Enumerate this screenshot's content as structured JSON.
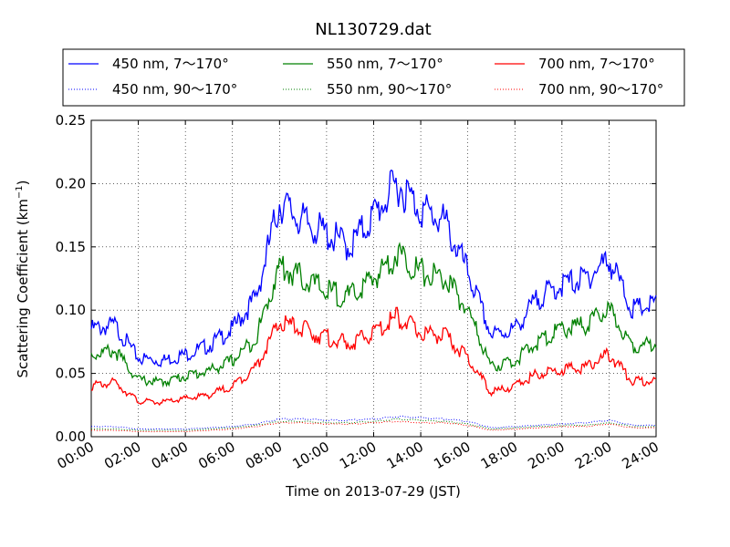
{
  "chart_data": {
    "type": "line",
    "title": "NL130729.dat",
    "xlabel": "Time on 2013-07-29 (JST)",
    "ylabel": "Scattering Coefficient (km",
    "ylabel_sup": "−1",
    "ylabel_end": ")",
    "xlim": [
      "00:00",
      "24:00"
    ],
    "ylim": [
      0,
      0.25
    ],
    "grid": true,
    "legend_position": "top",
    "xticks": [
      "00:00",
      "02:00",
      "04:00",
      "06:00",
      "08:00",
      "10:00",
      "12:00",
      "14:00",
      "16:00",
      "18:00",
      "20:00",
      "22:00",
      "24:00"
    ],
    "yticks": [
      "0.00",
      "0.05",
      "0.10",
      "0.15",
      "0.20",
      "0.25"
    ],
    "hour_x": [
      0,
      1,
      2,
      3,
      4,
      5,
      6,
      7,
      8,
      9,
      10,
      11,
      12,
      13,
      14,
      15,
      16,
      17,
      18,
      19,
      20,
      21,
      22,
      23,
      24
    ],
    "series": [
      {
        "name": "450 nm, 7～170°",
        "color": "#0000ff",
        "style": "solid",
        "values": [
          0.085,
          0.088,
          0.062,
          0.06,
          0.065,
          0.072,
          0.085,
          0.11,
          0.185,
          0.17,
          0.16,
          0.15,
          0.175,
          0.2,
          0.18,
          0.17,
          0.13,
          0.08,
          0.085,
          0.11,
          0.12,
          0.125,
          0.14,
          0.1,
          0.105
        ]
      },
      {
        "name": "550 nm, 7～170°",
        "color": "#008000",
        "style": "solid",
        "values": [
          0.065,
          0.068,
          0.045,
          0.043,
          0.048,
          0.052,
          0.06,
          0.078,
          0.135,
          0.125,
          0.115,
          0.11,
          0.125,
          0.145,
          0.13,
          0.125,
          0.1,
          0.055,
          0.06,
          0.075,
          0.085,
          0.088,
          0.1,
          0.072,
          0.073
        ]
      },
      {
        "name": "700 nm, 7～170°",
        "color": "#ff0000",
        "style": "solid",
        "values": [
          0.04,
          0.043,
          0.028,
          0.027,
          0.03,
          0.033,
          0.04,
          0.055,
          0.09,
          0.085,
          0.078,
          0.073,
          0.082,
          0.095,
          0.082,
          0.08,
          0.062,
          0.035,
          0.04,
          0.05,
          0.053,
          0.055,
          0.065,
          0.044,
          0.044
        ]
      },
      {
        "name": "450 nm, 90～170°",
        "color": "#0000ff",
        "style": "dotted",
        "values": [
          0.008,
          0.008,
          0.006,
          0.006,
          0.006,
          0.007,
          0.008,
          0.01,
          0.014,
          0.014,
          0.013,
          0.013,
          0.014,
          0.016,
          0.015,
          0.014,
          0.012,
          0.007,
          0.008,
          0.009,
          0.01,
          0.011,
          0.013,
          0.009,
          0.009
        ]
      },
      {
        "name": "550 nm, 90～170°",
        "color": "#008000",
        "style": "dotted",
        "values": [
          0.006,
          0.006,
          0.005,
          0.005,
          0.005,
          0.006,
          0.007,
          0.009,
          0.012,
          0.012,
          0.011,
          0.011,
          0.012,
          0.014,
          0.013,
          0.012,
          0.01,
          0.006,
          0.007,
          0.008,
          0.009,
          0.009,
          0.011,
          0.008,
          0.008
        ]
      },
      {
        "name": "700 nm, 90～170°",
        "color": "#ff0000",
        "style": "dotted",
        "values": [
          0.005,
          0.005,
          0.004,
          0.004,
          0.004,
          0.005,
          0.006,
          0.008,
          0.011,
          0.011,
          0.01,
          0.01,
          0.011,
          0.012,
          0.011,
          0.011,
          0.009,
          0.005,
          0.006,
          0.007,
          0.008,
          0.008,
          0.01,
          0.007,
          0.007
        ]
      }
    ]
  }
}
